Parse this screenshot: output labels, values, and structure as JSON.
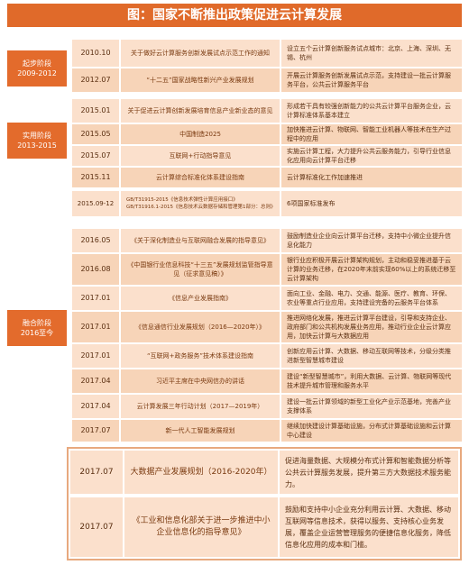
{
  "title": "图：国家不断推出政策促进云计算发展",
  "phases": [
    {
      "label": "起步阶段\n2009-2012"
    },
    {
      "label": "实用阶段\n2013-2015"
    },
    {
      "label": "融合阶段\n2016至今"
    }
  ],
  "rows": [
    {
      "date": "2010.10",
      "policy": "关于做好云计算服务创新发展试点示范工作的通知",
      "desc": "设立五个云计算创新服务试点城市：北京、上海、深圳、无锡、杭州"
    },
    {
      "date": "2012.07",
      "policy": "“十二五”国家战略性新兴产业发展规划",
      "desc": "开展云计算服务创新发展试点示范，支持建设一批云计算服务平台，公共云计算服务平台"
    },
    {
      "date": "2015.01",
      "policy": "关于促进云计算创新发展培育信息产业新业态的意见",
      "desc": "形成若干具有较强创新能力的公共云计算平台服务企业，云计算标准体系基本建立"
    },
    {
      "date": "2015.05",
      "policy": "中国制造2025",
      "desc": "加快推进云计算、物联网、智能工业机器人等技术在生产过程中的应用"
    },
    {
      "date": "2015.07",
      "policy": "互联网+行动指导意见",
      "desc": "实施云计算工程，大力提升公共云服务能力，引导行业信息化应用向云计算平台迁移"
    },
    {
      "date": "2015.11",
      "policy": "云计算综合标准化体系建设指南",
      "desc": "云计算标准化工作加速推进"
    },
    {
      "date": "2015.09-12",
      "policy": "GB/T31915-2015《信息技术弹性计算应用接口》\nGB/T31916.1-2015《信息技术云数据存储和管理第1部分：总则》",
      "desc": "6项国家标准发布"
    },
    {
      "date": "2016.05",
      "policy": "《关于深化制造业与互联网融合发展的指导意见》",
      "desc": "鼓励制造业企业向云计算平台迁移，支持中小微企业提升信息化能力"
    },
    {
      "date": "2016.08",
      "policy": "《中国银行业信息科技“十三五”发展规划监管指导意见（征求意见稿）》",
      "desc": "银行业应积极开展云计算架构规划，主动和稳妥推进基于云计算的业务迁移，在2020年末前实现60%以上的系统迁移至云计算架构"
    },
    {
      "date": "2017.01",
      "policy": "《信息产业发展指南》",
      "desc": "面向工业、金融、电力、交通、能源、医疗、教育、环保、农业等重点行业应用，支持建设完备的云服务平台体系"
    },
    {
      "date": "2017.01",
      "policy": "《信息通信行业发展规划（2016—2020年）》",
      "desc": "推进网络化发展，推进云计算平台建设，引导和支持企业、政府部门和公共机构发展业务应用，推动行业企业云计算应用，加快云计算与大数据应用"
    },
    {
      "date": "2017.01",
      "policy": "“互联网+政务服务”技术体系建设指南",
      "desc": "创新应用云计算、大数据、移动互联网等技术，分级分类推进新型智慧城市建设"
    },
    {
      "date": "2017.04",
      "policy": "习近平主席在中央网信办的讲话",
      "desc": "建设“新型智慧城市”，利用大数据、云计算、物联网等现代技术提升城市管理和服务水平"
    },
    {
      "date": "2017.04",
      "policy": "云计算发展三年行动计划（2017—2019年）",
      "desc": "建设一批云计算领域的新型工业化产业示范基地，完善产业支撑体系"
    },
    {
      "date": "2017.07",
      "policy": "新一代人工智能发展规划",
      "desc": "继续加快建设计算基础设施，分布式计算基础设施和云计算中心建设"
    },
    {
      "date": "2017.07",
      "policy": "大数据产业发展规划（2016-2020年）",
      "desc": "促进海量数据、大规模分布式计算和智能数据分析等公共云计算服务发展，提升第三方大数据技术服务能力。"
    },
    {
      "date": "2017.07",
      "policy": "《工业和信息化部关于进一步推进中小企业信息化的指导意见》",
      "desc": "鼓励和支持中小企业充分利用云计算、大数据、移动互联网等信息技术，获得以服务、支持核心业务发展，覆盖企业运营管理服务的便捷信息化服务，降低信息化应用的成本和门槛。"
    }
  ]
}
